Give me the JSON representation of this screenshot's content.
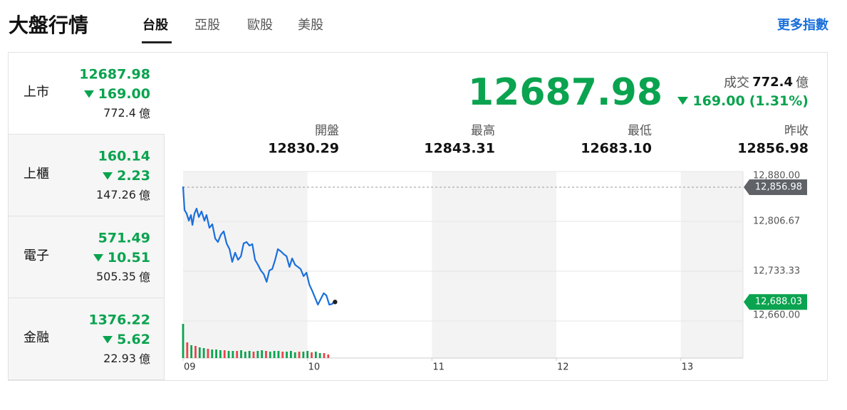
{
  "header": {
    "title": "大盤行情",
    "tabs": [
      "台股",
      "亞股",
      "歐股",
      "美股"
    ],
    "active_tab": 0,
    "more_link": "更多指數"
  },
  "unit": "億",
  "active_market": 0,
  "markets": [
    {
      "name": "上市",
      "price": "12687.98",
      "change": "169.00",
      "volume": "772.4"
    },
    {
      "name": "上櫃",
      "price": "160.14",
      "change": "2.23",
      "volume": "147.26"
    },
    {
      "name": "電子",
      "price": "571.49",
      "change": "10.51",
      "volume": "505.35"
    },
    {
      "name": "金融",
      "price": "1376.22",
      "change": "5.62",
      "volume": "22.93"
    }
  ],
  "quote": {
    "price": "12687.98",
    "volume_label": "成交",
    "volume": "772.4",
    "change": "169.00",
    "change_pct": "(1.31%)",
    "stats": [
      {
        "label": "開盤",
        "value": "12830.29"
      },
      {
        "label": "最高",
        "value": "12843.31"
      },
      {
        "label": "最低",
        "value": "12683.10"
      },
      {
        "label": "昨收",
        "value": "12856.98"
      }
    ]
  },
  "chart_data": {
    "type": "line",
    "color": "#1a6fdc",
    "x": [
      0,
      0.7,
      1.7,
      2.8,
      3.8,
      4.5,
      5.5,
      6.5,
      7.6,
      8.9,
      10.3,
      11.3,
      12.7,
      14.1,
      15.5,
      16.8,
      18.2,
      19.6,
      21.0,
      22.4,
      23.7,
      25.1,
      26.5,
      27.9,
      29.2,
      30.6,
      32.0,
      33.4,
      34.7,
      36.1,
      37.5,
      38.9,
      40.3,
      41.6,
      43.0,
      44.4,
      45.7,
      47.1,
      48.5,
      49.9,
      51.3,
      52.6,
      54.0,
      55.4,
      56.7,
      58.1,
      59.5,
      60.9,
      62.2,
      63.6,
      65.0,
      66.4,
      67.8,
      69.1,
      70.5,
      71.9,
      72.6
    ],
    "values": [
      12858.0,
      12823.4,
      12818.2,
      12807.7,
      12816.1,
      12801.4,
      12818.2,
      12825.5,
      12813.0,
      12821.3,
      12807.7,
      12816.1,
      12797.2,
      12802.5,
      12781.5,
      12776.3,
      12786.8,
      12792.0,
      12774.2,
      12765.8,
      12747.0,
      12760.6,
      12750.1,
      12755.3,
      12774.2,
      12776.3,
      12771.0,
      12773.1,
      12750.1,
      12742.8,
      12734.4,
      12729.1,
      12717.6,
      12734.4,
      12736.5,
      12750.1,
      12765.8,
      12762.7,
      12758.5,
      12755.3,
      12739.6,
      12752.2,
      12742.8,
      12739.6,
      12736.5,
      12726.0,
      12731.2,
      12713.4,
      12705.0,
      12694.6,
      12684.1,
      12692.5,
      12700.9,
      12697.7,
      12684.1,
      12685.1,
      12688.03
    ],
    "xlim": [
      0,
      270
    ],
    "xticks": [
      {
        "value": 0,
        "label": "09"
      },
      {
        "value": 60,
        "label": "10"
      },
      {
        "value": 120,
        "label": "11"
      },
      {
        "value": 180,
        "label": "12"
      },
      {
        "value": 240,
        "label": "13"
      }
    ],
    "ylim": [
      12660,
      12880
    ],
    "yticks": [
      {
        "value": 12880,
        "label": "12,880.00"
      },
      {
        "value": 12806.67,
        "label": "12,806.67"
      },
      {
        "value": 12733.33,
        "label": "12,733.33"
      },
      {
        "value": 12660,
        "label": "12,660.00"
      }
    ],
    "grid": true,
    "reference": {
      "value": 12856.98,
      "label": "12,856.98"
    },
    "last": {
      "value": 12688.03,
      "label": "12,688.03"
    },
    "volume": {
      "ylim": [
        0,
        48
      ],
      "x": [
        0,
        2,
        4,
        6,
        8,
        10,
        12,
        14,
        16,
        18,
        20,
        22,
        24,
        26,
        28,
        30,
        32,
        34,
        36,
        38,
        40,
        42,
        44,
        46,
        48,
        50,
        52,
        54,
        56,
        58,
        60,
        62,
        64,
        66,
        68,
        70
      ],
      "values": [
        48,
        22,
        18,
        17,
        15,
        14,
        13,
        12,
        12,
        11,
        11,
        10,
        10,
        10,
        11,
        9,
        10,
        9,
        10,
        11,
        10,
        9,
        10,
        10,
        9,
        9,
        10,
        8,
        9,
        9,
        10,
        8,
        9,
        7,
        7,
        5
      ],
      "colors": [
        "#0aa34f",
        "#e8454a",
        "#0aa34f",
        "#e8454a",
        "#0aa34f",
        "#0aa34f",
        "#e8454a",
        "#0aa34f",
        "#0aa34f",
        "#0aa34f",
        "#e8454a",
        "#0aa34f",
        "#0aa34f",
        "#e8454a",
        "#0aa34f",
        "#0aa34f",
        "#0aa34f",
        "#e8454a",
        "#0aa34f",
        "#0aa34f",
        "#e8454a",
        "#0aa34f",
        "#0aa34f",
        "#0aa34f",
        "#e8454a",
        "#0aa34f",
        "#0aa34f",
        "#0aa34f",
        "#e8454a",
        "#0aa34f",
        "#0aa34f",
        "#e8454a",
        "#0aa34f",
        "#0aa34f",
        "#e8454a",
        "#e8454a"
      ]
    }
  }
}
